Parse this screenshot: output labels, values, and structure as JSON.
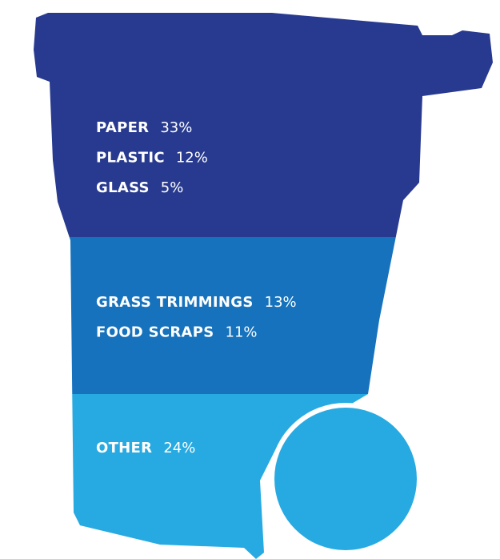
{
  "groups": [
    {
      "items": [
        {
          "name": "PAPER",
          "percent": "33%"
        },
        {
          "name": "PLASTIC",
          "percent": "12%"
        },
        {
          "name": "GLASS",
          "percent": "5%"
        }
      ]
    },
    {
      "items": [
        {
          "name": "GRASS TRIMMINGS",
          "percent": "13%"
        },
        {
          "name": "FOOD SCRAPS",
          "percent": "11%"
        }
      ]
    },
    {
      "items": [
        {
          "name": "OTHER",
          "percent": "24%"
        }
      ]
    }
  ]
}
